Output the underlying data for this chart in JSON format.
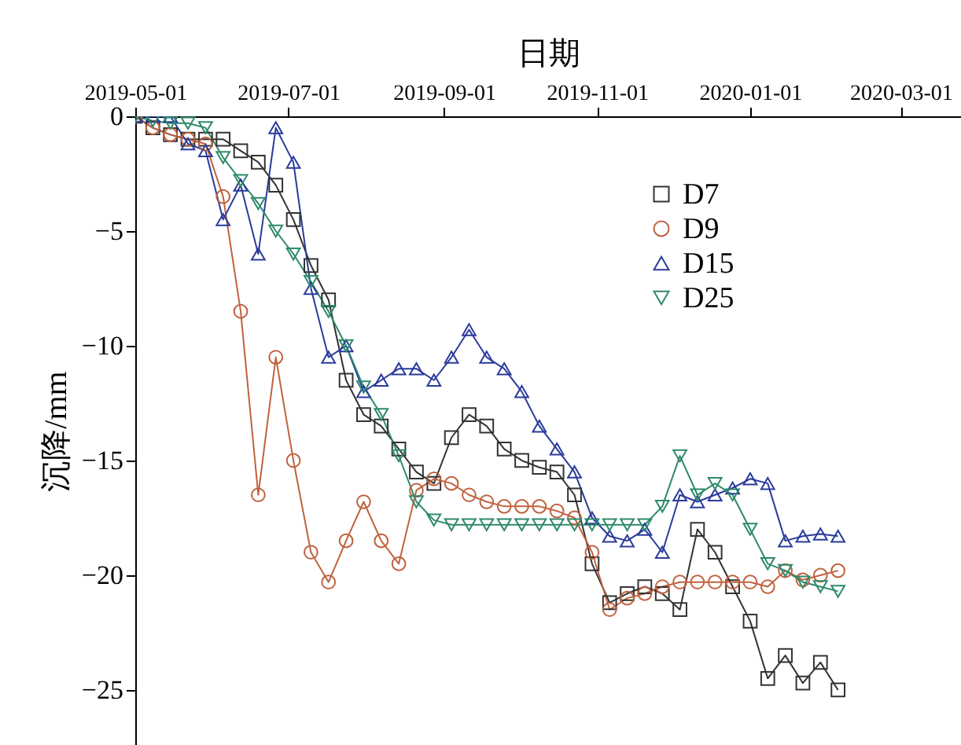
{
  "chart_data": {
    "type": "line",
    "xlabel": "日期",
    "ylabel": "沉降/mm",
    "x": [
      "2019-05-01",
      "2019-05-08",
      "2019-05-15",
      "2019-05-22",
      "2019-05-29",
      "2019-06-05",
      "2019-06-12",
      "2019-06-19",
      "2019-06-26",
      "2019-07-03",
      "2019-07-10",
      "2019-07-17",
      "2019-07-24",
      "2019-07-31",
      "2019-08-07",
      "2019-08-14",
      "2019-08-21",
      "2019-08-28",
      "2019-09-04",
      "2019-09-11",
      "2019-09-18",
      "2019-09-25",
      "2019-10-02",
      "2019-10-09",
      "2019-10-16",
      "2019-10-23",
      "2019-10-30",
      "2019-11-06",
      "2019-11-13",
      "2019-11-20",
      "2019-11-27",
      "2019-12-04",
      "2019-12-11",
      "2019-12-18",
      "2019-12-25",
      "2020-01-01",
      "2020-01-08",
      "2020-01-15",
      "2020-01-22",
      "2020-01-29",
      "2020-02-05"
    ],
    "series": [
      {
        "name": "D7",
        "color": "#333333",
        "marker": "square",
        "values": [
          0,
          -0.5,
          -0.8,
          -1,
          -1,
          -1,
          -1.5,
          -2,
          -3,
          -4.5,
          -6.5,
          -8,
          -11.5,
          -13,
          -13.5,
          -14.5,
          -15.5,
          -16,
          -14,
          -13,
          -13.5,
          -14.5,
          -15,
          -15.3,
          -15.5,
          -16.5,
          -19.5,
          -21.2,
          -20.8,
          -20.5,
          -20.8,
          -21.5,
          -18,
          -19,
          -20.5,
          -22,
          -24.5,
          -23.5,
          -24.7,
          -23.8,
          -25
        ]
      },
      {
        "name": "D9",
        "color": "#c0623f",
        "marker": "circle",
        "values": [
          0,
          -0.5,
          -0.8,
          -1,
          -1.2,
          -3.5,
          -8.5,
          -16.5,
          -10.5,
          -15,
          -19,
          -20.3,
          -18.5,
          -16.8,
          -18.5,
          -19.5,
          -16.3,
          -15.8,
          -16,
          -16.5,
          -16.8,
          -17,
          -17,
          -17,
          -17.2,
          -17.5,
          -19,
          -21.5,
          -21,
          -20.8,
          -20.5,
          -20.3,
          -20.3,
          -20.3,
          -20.3,
          -20.3,
          -20.5,
          -19.8,
          -20.2,
          -20,
          -19.8
        ]
      },
      {
        "name": "D15",
        "color": "#2a3b9a",
        "marker": "triangle",
        "values": [
          0,
          0,
          0,
          -1.2,
          -1.5,
          -4.5,
          -3,
          -6,
          -0.5,
          -2,
          -7.5,
          -10.5,
          -10,
          -12,
          -11.5,
          -11,
          -11,
          -11.5,
          -10.5,
          -9.3,
          -10.5,
          -11,
          -12,
          -13.5,
          -14.5,
          -15.5,
          -17.5,
          -18.3,
          -18.5,
          -18,
          -19,
          -16.5,
          -16.8,
          -16.5,
          -16.2,
          -15.8,
          -16,
          -18.5,
          -18.3,
          -18.2,
          -18.3
        ]
      },
      {
        "name": "D25",
        "color": "#2e8a6a",
        "marker": "triangle-down",
        "values": [
          0,
          -0.2,
          -0.3,
          -0.3,
          -0.5,
          -1.8,
          -2.8,
          -3.8,
          -5,
          -6,
          -7.2,
          -8.5,
          -10,
          -11.8,
          -13,
          -14.8,
          -16.8,
          -17.6,
          -17.8,
          -17.8,
          -17.8,
          -17.8,
          -17.8,
          -17.8,
          -17.8,
          -17.8,
          -17.8,
          -17.8,
          -17.8,
          -17.8,
          -17,
          -14.8,
          -16.5,
          -16,
          -16.5,
          -18,
          -19.5,
          -19.8,
          -20.3,
          -20.5,
          -20.7
        ]
      }
    ],
    "xlim": [
      "2019-05-01",
      "2020-03-25"
    ],
    "xticks": [
      "2019-05-01",
      "2019-07-01",
      "2019-09-01",
      "2019-11-01",
      "2020-01-01",
      "2020-03-01"
    ],
    "ylim": [
      -27.4,
      0
    ],
    "yticks": [
      -25,
      -20,
      -15,
      -10,
      -5,
      0
    ],
    "grid": false,
    "legend": "top right",
    "line_style": "solid"
  }
}
